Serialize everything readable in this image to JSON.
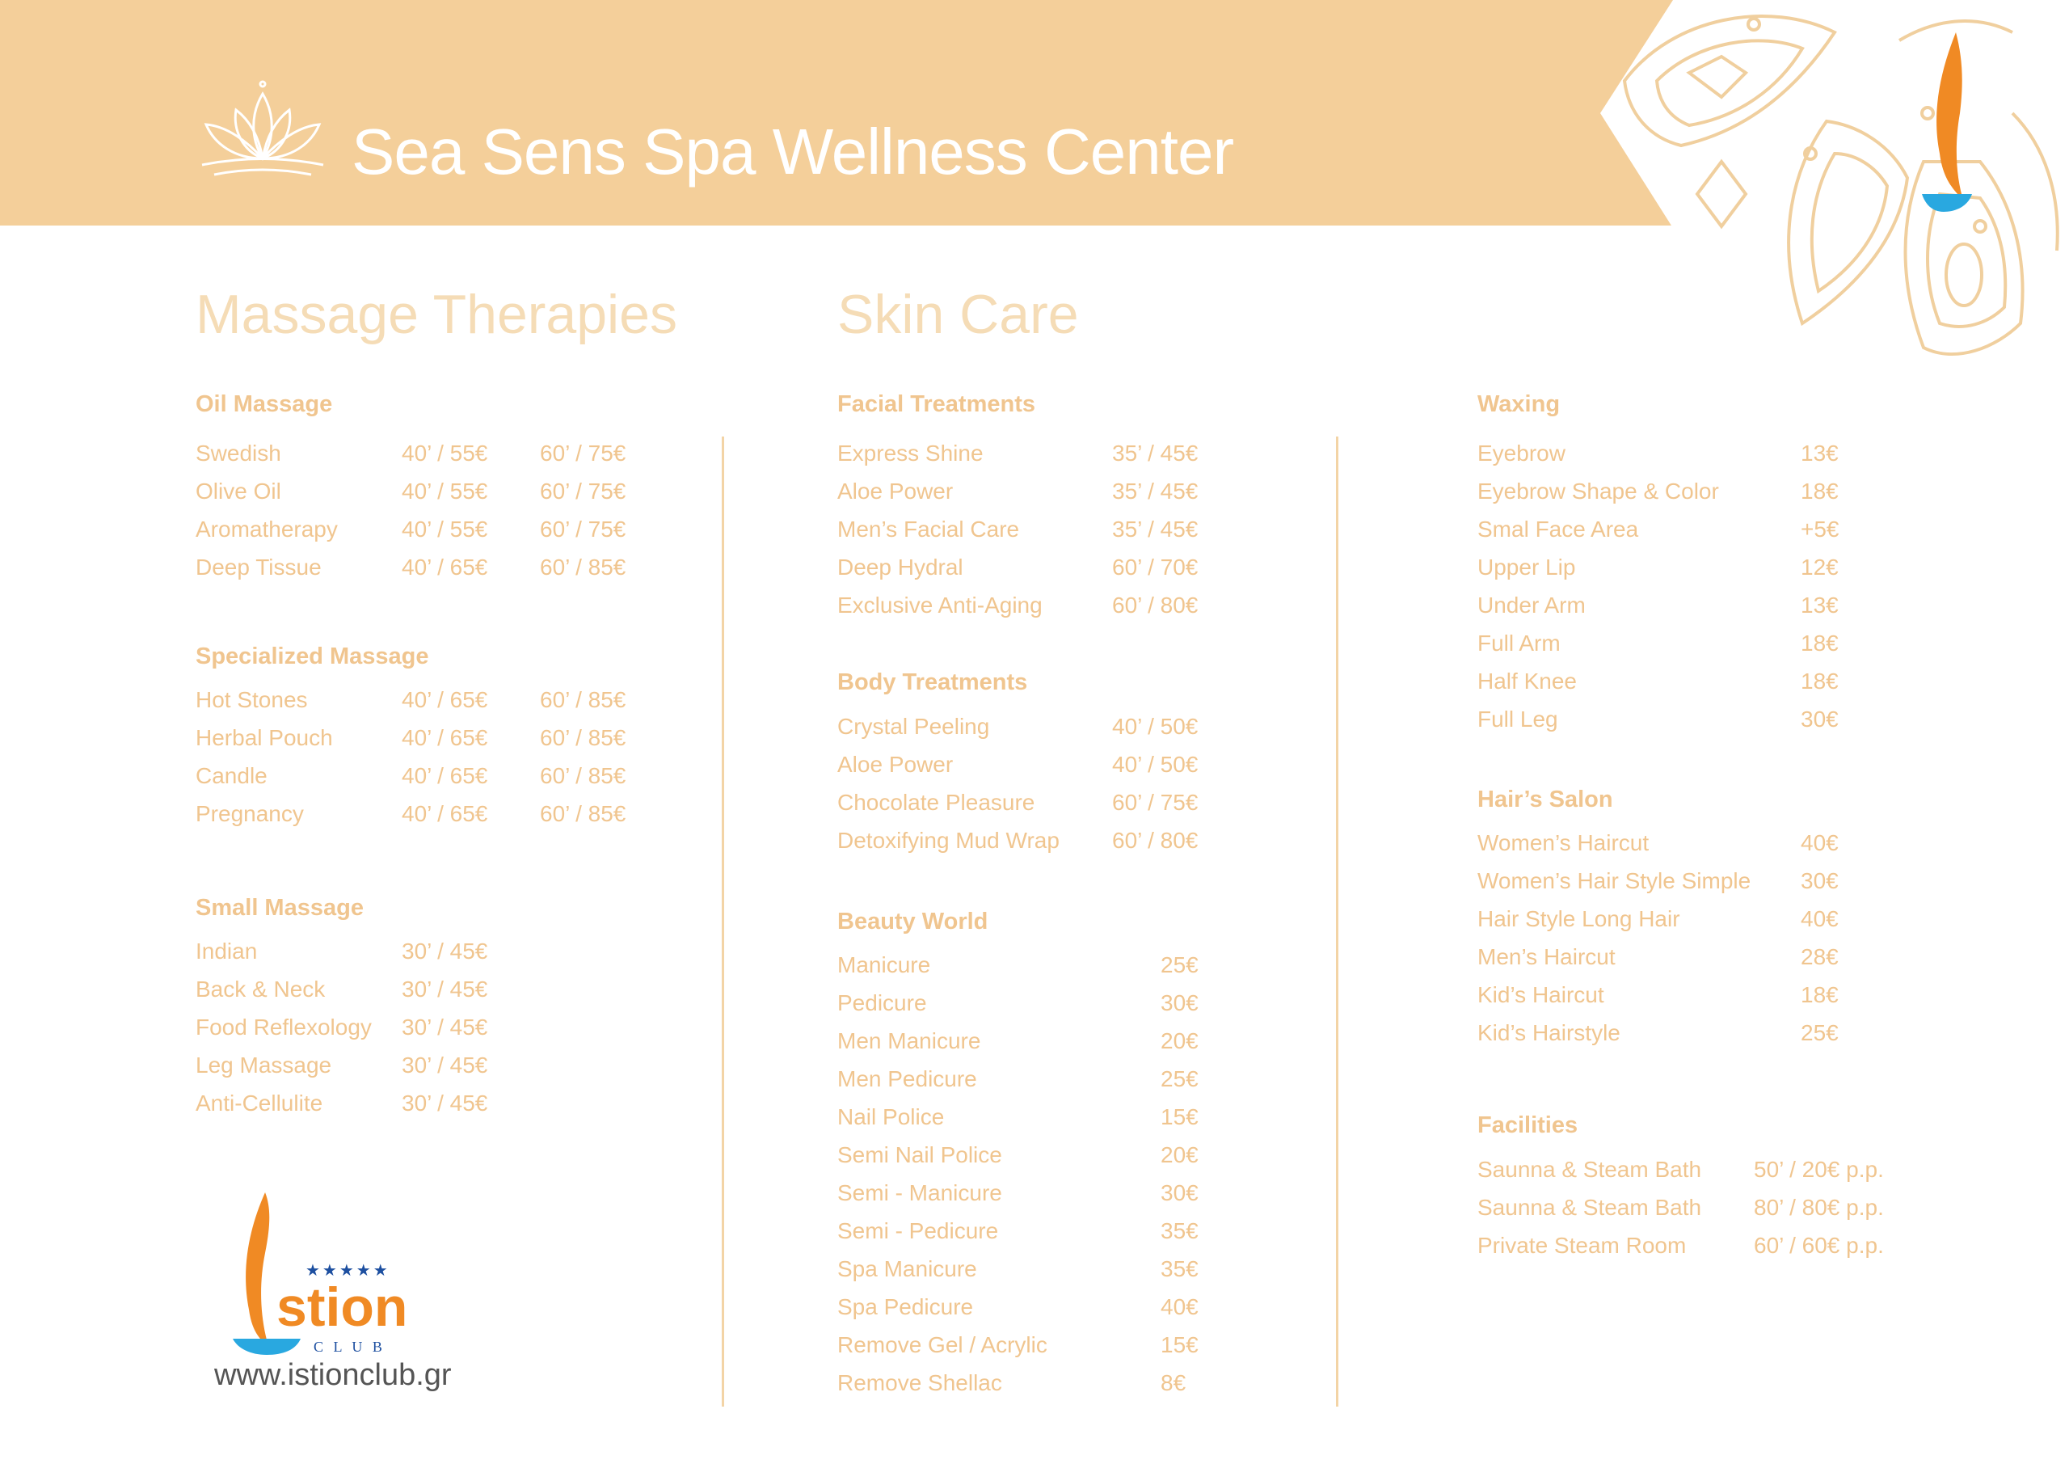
{
  "header": {
    "title": "Sea Sens Spa Wellness Center"
  },
  "massage": {
    "title": "Massage Therapies",
    "categories": [
      {
        "title": "Oil Massage",
        "items": [
          {
            "name": "Swedish",
            "p1": "40’ / 55€",
            "p2": "60’ / 75€"
          },
          {
            "name": "Olive Oil",
            "p1": "40’ / 55€",
            "p2": "60’ / 75€"
          },
          {
            "name": "Aromatherapy",
            "p1": "40’ / 55€",
            "p2": "60’ / 75€"
          },
          {
            "name": "Deep Tissue",
            "p1": "40’ / 65€",
            "p2": "60’ / 85€"
          }
        ]
      },
      {
        "title": "Specialized Massage",
        "items": [
          {
            "name": "Hot Stones",
            "p1": "40’ / 65€",
            "p2": "60’ / 85€"
          },
          {
            "name": "Herbal Pouch",
            "p1": "40’ / 65€",
            "p2": "60’ / 85€"
          },
          {
            "name": "Candle",
            "p1": "40’ / 65€",
            "p2": "60’ / 85€"
          },
          {
            "name": "Pregnancy",
            "p1": "40’ / 65€",
            "p2": "60’ / 85€"
          }
        ]
      },
      {
        "title": "Small Massage",
        "items": [
          {
            "name": "Indian",
            "p1": "30’ / 45€"
          },
          {
            "name": "Back & Neck",
            "p1": "30’ / 45€"
          },
          {
            "name": "Food Reflexology",
            "p1": "30’ / 45€"
          },
          {
            "name": "Leg Massage",
            "p1": "30’ / 45€"
          },
          {
            "name": "Anti-Cellulite",
            "p1": "30’ / 45€"
          }
        ]
      }
    ]
  },
  "skin": {
    "title": "Skin Care",
    "categories": [
      {
        "title": "Facial Treatments",
        "items": [
          {
            "name": "Express Shine",
            "p1": "35’ / 45€"
          },
          {
            "name": "Aloe Power",
            "p1": "35’ / 45€"
          },
          {
            "name": "Men’s Facial Care",
            "p1": "35’ / 45€"
          },
          {
            "name": "Deep Hydral",
            "p1": "60’ / 70€"
          },
          {
            "name": "Exclusive Anti-Aging",
            "p1": "60’ / 80€"
          }
        ]
      },
      {
        "title": "Body Treatments",
        "items": [
          {
            "name": "Crystal Peeling",
            "p1": "40’ / 50€"
          },
          {
            "name": "Aloe Power",
            "p1": "40’ / 50€"
          },
          {
            "name": "Chocolate Pleasure",
            "p1": "60’ / 75€"
          },
          {
            "name": "Detoxifying Mud Wrap",
            "p1": "60’ / 80€"
          }
        ]
      },
      {
        "title": "Beauty World",
        "items": [
          {
            "name": "Manicure",
            "p1": "25€"
          },
          {
            "name": "Pedicure",
            "p1": "30€"
          },
          {
            "name": "Men Manicure",
            "p1": "20€"
          },
          {
            "name": "Men Pedicure",
            "p1": "25€"
          },
          {
            "name": "Nail Police",
            "p1": "15€"
          },
          {
            "name": "Semi Nail Police",
            "p1": "20€"
          },
          {
            "name": "Semi - Manicure",
            "p1": "30€"
          },
          {
            "name": "Semi - Pedicure",
            "p1": "35€"
          },
          {
            "name": "Spa Manicure",
            "p1": "35€"
          },
          {
            "name": "Spa Pedicure",
            "p1": "40€"
          },
          {
            "name": "Remove Gel / Acrylic",
            "p1": "15€"
          },
          {
            "name": "Remove  Shellac",
            "p1": "8€"
          }
        ]
      }
    ]
  },
  "right": {
    "categories": [
      {
        "title": "Waxing",
        "items": [
          {
            "name": "Eyebrow",
            "p1": "13€"
          },
          {
            "name": "Eyebrow Shape & Color",
            "p1": "18€"
          },
          {
            "name": "Smal Face Area",
            "p1": "+5€"
          },
          {
            "name": "Upper Lip",
            "p1": "12€"
          },
          {
            "name": "Under Arm",
            "p1": "13€"
          },
          {
            "name": "Full Arm",
            "p1": "18€"
          },
          {
            "name": "Half Knee",
            "p1": "18€"
          },
          {
            "name": "Full Leg",
            "p1": "30€"
          }
        ]
      },
      {
        "title": "Hair’s Salon",
        "items": [
          {
            "name": "Women’s Haircut",
            "p1": "40€"
          },
          {
            "name": "Women’s Hair Style Simple",
            "p1": "30€"
          },
          {
            "name": "Hair Style Long Hair",
            "p1": "40€"
          },
          {
            "name": "Men’s Haircut",
            "p1": "28€"
          },
          {
            "name": "Kid’s Haircut",
            "p1": "18€"
          },
          {
            "name": "Kid’s Hairstyle",
            "p1": "25€"
          }
        ]
      },
      {
        "title": "Facilities",
        "items": [
          {
            "name": "Saunna & Steam Bath",
            "p1": "50’ / 20€ p.p."
          },
          {
            "name": "Saunna & Steam Bath",
            "p1": "80’ / 80€ p.p."
          },
          {
            "name": "Private Steam Room",
            "p1": "60’ / 60€ p.p."
          }
        ]
      }
    ]
  },
  "logo": {
    "brand": "stion",
    "sub": "C L U B",
    "stars": "★★★★★"
  },
  "footer": {
    "website": "www.istionclub.gr"
  },
  "colors": {
    "band": "#f4cf9a",
    "text": "#f0c58f",
    "section_title": "#f5dcb6",
    "flame_orange": "#f08a24",
    "water_blue": "#29a8e0"
  }
}
